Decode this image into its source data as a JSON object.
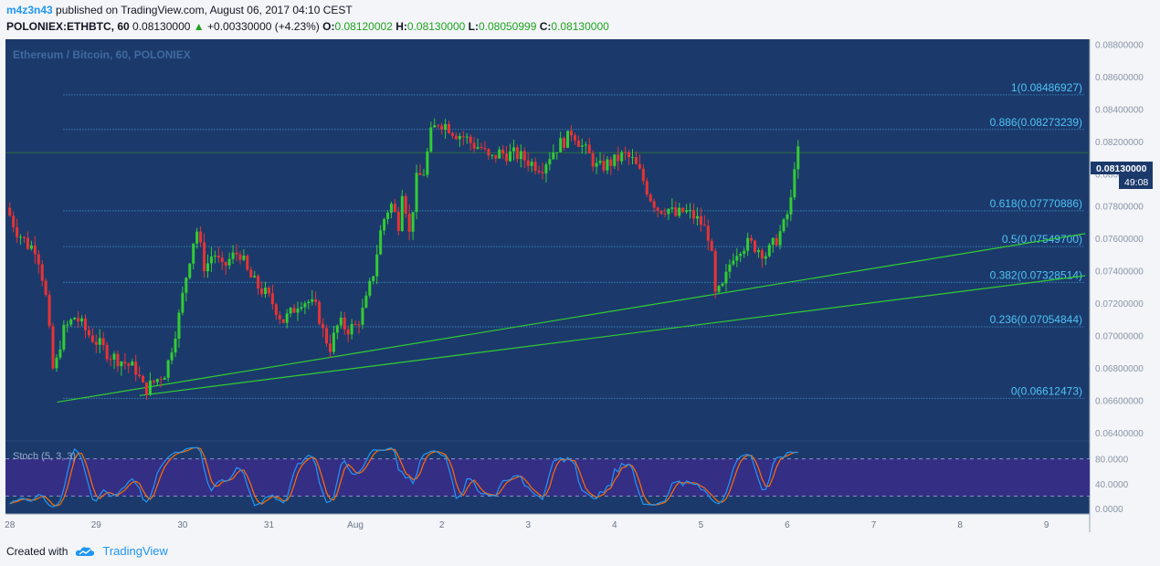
{
  "header": {
    "author": "m4z3n43",
    "published_text": "published on TradingView.com, August 06, 2017 04:10 CEST",
    "symbol": "POLONIEX:ETHBTC, 60",
    "last": "0.08130000",
    "change_arrow": "▲",
    "change": "+0.00330000 (+4.23%)",
    "o_label": "O:",
    "o_val": "0.08120002",
    "h_label": "H:",
    "h_val": "0.08130000",
    "l_label": "L:",
    "l_val": "0.08050999",
    "c_label": "C:",
    "c_val": "0.08130000"
  },
  "footer": {
    "created_with": "Created with",
    "brand": "TradingView"
  },
  "chart_data": {
    "type": "candlestick",
    "title": "Ethereum / Bitcoin, 60, POLONIEX",
    "ylim": [
      0.0635,
      0.0883
    ],
    "y_ticks": [
      "0.08800000",
      "0.08600000",
      "0.08400000",
      "0.08200000",
      "0.08000000",
      "0.07800000",
      "0.07600000",
      "0.07400000",
      "0.07200000",
      "0.07000000",
      "0.06800000",
      "0.06600000",
      "0.06400000"
    ],
    "y_tick_values": [
      0.088,
      0.086,
      0.084,
      0.082,
      0.08,
      0.078,
      0.076,
      0.074,
      0.072,
      0.07,
      0.068,
      0.066,
      0.064
    ],
    "x_ticks": [
      "28",
      "29",
      "30",
      "31",
      "Aug",
      "2",
      "3",
      "4",
      "5",
      "6",
      "7",
      "8",
      "9"
    ],
    "x_tick_days": [
      0,
      1,
      2,
      3,
      4,
      5,
      6,
      7,
      8,
      9,
      10,
      11,
      12
    ],
    "x_range_days": [
      -0.05,
      12.5
    ],
    "last_price_label": "0.08130000",
    "countdown_label": "49:08",
    "last_price_value": 0.0813,
    "fib_levels": [
      {
        "label": "1(0.08486927)",
        "value": 0.08486927
      },
      {
        "label": "0.886(0.08273239)",
        "value": 0.08273239
      },
      {
        "label": "0.618(0.07770886)",
        "value": 0.07770886
      },
      {
        "label": "0.5(0.07549700)",
        "value": 0.075497
      },
      {
        "label": "0.382(0.07328514)",
        "value": 0.07328514
      },
      {
        "label": "0.236(0.07054844)",
        "value": 0.07054844
      },
      {
        "label": "0(0.06612473)",
        "value": 0.06612473
      }
    ],
    "trendlines": [
      {
        "x": [
          0.55,
          12.45
        ],
        "y": [
          0.0659,
          0.0763
        ]
      },
      {
        "x": [
          1.5,
          12.45
        ],
        "y": [
          0.0663,
          0.0737
        ]
      }
    ],
    "price_path": [
      [
        0.0,
        0.0779
      ],
      [
        0.12,
        0.0765
      ],
      [
        0.25,
        0.0756
      ],
      [
        0.35,
        0.0754
      ],
      [
        0.45,
        0.0728
      ],
      [
        0.55,
        0.0675
      ],
      [
        0.65,
        0.0702
      ],
      [
        0.8,
        0.0712
      ],
      [
        0.95,
        0.0701
      ],
      [
        1.05,
        0.0696
      ],
      [
        1.2,
        0.0688
      ],
      [
        1.35,
        0.0684
      ],
      [
        1.5,
        0.0679
      ],
      [
        1.6,
        0.0666
      ],
      [
        1.7,
        0.0671
      ],
      [
        1.85,
        0.0678
      ],
      [
        2.0,
        0.0712
      ],
      [
        2.1,
        0.0742
      ],
      [
        2.2,
        0.0767
      ],
      [
        2.3,
        0.0741
      ],
      [
        2.4,
        0.0752
      ],
      [
        2.5,
        0.0741
      ],
      [
        2.6,
        0.0748
      ],
      [
        2.7,
        0.0752
      ],
      [
        2.8,
        0.0738
      ],
      [
        2.9,
        0.0731
      ],
      [
        3.0,
        0.0726
      ],
      [
        3.1,
        0.0719
      ],
      [
        3.2,
        0.0709
      ],
      [
        3.3,
        0.0714
      ],
      [
        3.4,
        0.0722
      ],
      [
        3.5,
        0.0721
      ],
      [
        3.6,
        0.0716
      ],
      [
        3.68,
        0.07
      ],
      [
        3.75,
        0.0693
      ],
      [
        3.85,
        0.0708
      ],
      [
        3.95,
        0.0704
      ],
      [
        4.05,
        0.0706
      ],
      [
        4.15,
        0.0718
      ],
      [
        4.25,
        0.0739
      ],
      [
        4.35,
        0.0769
      ],
      [
        4.45,
        0.0782
      ],
      [
        4.55,
        0.0768
      ],
      [
        4.6,
        0.0802
      ],
      [
        4.65,
        0.0756
      ],
      [
        4.75,
        0.0796
      ],
      [
        4.85,
        0.0802
      ],
      [
        4.9,
        0.0823
      ],
      [
        5.0,
        0.0832
      ],
      [
        5.1,
        0.083
      ],
      [
        5.2,
        0.0825
      ],
      [
        5.3,
        0.0823
      ],
      [
        5.4,
        0.0818
      ],
      [
        5.5,
        0.0816
      ],
      [
        5.6,
        0.0808
      ],
      [
        5.7,
        0.0813
      ],
      [
        5.8,
        0.0812
      ],
      [
        5.9,
        0.0812
      ],
      [
        6.0,
        0.0809
      ],
      [
        6.1,
        0.0806
      ],
      [
        6.2,
        0.0804
      ],
      [
        6.3,
        0.0812
      ],
      [
        6.4,
        0.0818
      ],
      [
        6.5,
        0.0822
      ],
      [
        6.55,
        0.0827
      ],
      [
        6.65,
        0.0818
      ],
      [
        6.75,
        0.0811
      ],
      [
        6.85,
        0.0803
      ],
      [
        6.95,
        0.0806
      ],
      [
        7.05,
        0.0808
      ],
      [
        7.15,
        0.0812
      ],
      [
        7.25,
        0.0808
      ],
      [
        7.35,
        0.0799
      ],
      [
        7.45,
        0.0786
      ],
      [
        7.55,
        0.0778
      ],
      [
        7.65,
        0.0779
      ],
      [
        7.75,
        0.0774
      ],
      [
        7.85,
        0.0777
      ],
      [
        7.95,
        0.0774
      ],
      [
        8.05,
        0.0769
      ],
      [
        8.15,
        0.076
      ],
      [
        8.2,
        0.0724
      ],
      [
        8.3,
        0.073
      ],
      [
        8.4,
        0.0749
      ],
      [
        8.5,
        0.0755
      ],
      [
        8.6,
        0.0757
      ],
      [
        8.7,
        0.0754
      ],
      [
        8.8,
        0.075
      ],
      [
        8.9,
        0.0758
      ],
      [
        9.0,
        0.0768
      ],
      [
        9.08,
        0.0781
      ],
      [
        9.12,
        0.0805
      ],
      [
        9.15,
        0.0813
      ]
    ],
    "stoch": {
      "label": "Stoch (5, 3, 3)",
      "ylim": [
        0,
        100
      ],
      "bands": [
        80,
        20
      ],
      "y_ticks": [
        "80.0000",
        "40.0000",
        "0.0000"
      ],
      "y_tick_values": [
        80,
        40,
        0
      ],
      "k_color": "#2196f3",
      "d_color": "#ff6d00"
    }
  },
  "colors": {
    "background": "#1b3a6b",
    "up": "#33cc33",
    "down": "#e83333",
    "fib": "#4fc3f7",
    "trend": "#33cc33",
    "band_fill": "#3a2d8a"
  }
}
